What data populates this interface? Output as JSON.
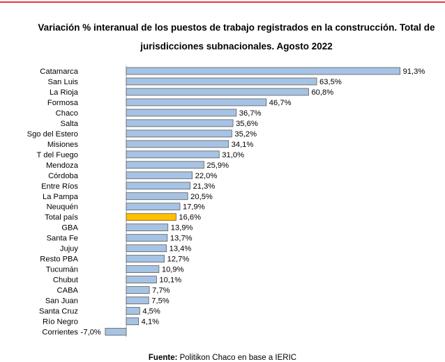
{
  "colors": {
    "rule": "#e8343a",
    "bar": "#a6c3e4",
    "highlight": "#ffc000",
    "bar_stroke": "#5b5b5b",
    "axis": "#a0a0a0"
  },
  "chart_data": {
    "type": "bar",
    "orientation": "horizontal",
    "title": "Variación % interanual de los puestos de trabajo registrados en la construcción. Total de jurisdicciones subnacionales. Agosto 2022",
    "categories": [
      "Catamarca",
      "San Luis",
      "La Rioja",
      "Formosa",
      "Chaco",
      "Salta",
      "Sgo del Estero",
      "Misiones",
      "T del Fuego",
      "Mendoza",
      "Córdoba",
      "Entre Ríos",
      "La Pampa",
      "Neuquén",
      "Total país",
      "GBA",
      "Santa Fe",
      "Jujuy",
      "Resto PBA",
      "Tucumán",
      "Chubut",
      "CABA",
      "San Juan",
      "Santa Cruz",
      "Río Negro",
      "Corrientes"
    ],
    "values": [
      91.3,
      63.5,
      60.8,
      46.7,
      36.7,
      35.6,
      35.2,
      34.1,
      31.0,
      25.9,
      22.0,
      21.3,
      20.5,
      17.9,
      16.6,
      13.9,
      13.7,
      13.4,
      12.7,
      10.9,
      10.1,
      7.7,
      7.5,
      4.5,
      4.1,
      -7.0
    ],
    "value_labels": [
      "91,3%",
      "63,5%",
      "60,8%",
      "46,7%",
      "36,7%",
      "35,6%",
      "35,2%",
      "34,1%",
      "31,0%",
      "25,9%",
      "22,0%",
      "21,3%",
      "20,5%",
      "17,9%",
      "16,6%",
      "13,9%",
      "13,7%",
      "13,4%",
      "12,7%",
      "10,9%",
      "10,1%",
      "7,7%",
      "7,5%",
      "4,5%",
      "4,1%",
      "-7,0%"
    ],
    "highlight_category": "Total país",
    "grid": false,
    "legend": "none"
  },
  "footer": {
    "source_label": "Fuente:",
    "source_text": " Politikon Chaco en base a IERIC"
  }
}
